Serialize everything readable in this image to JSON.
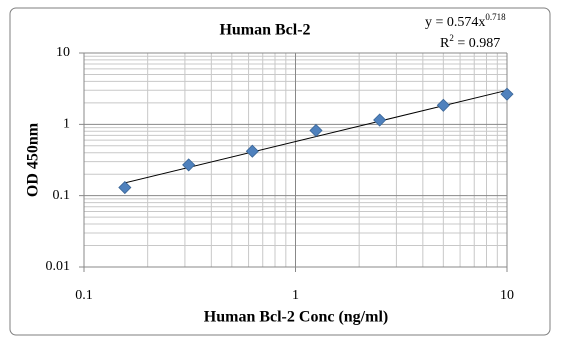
{
  "chart_data": {
    "type": "scatter",
    "title": "Human Bcl-2",
    "x_label": "Human Bcl-2 Conc (ng/ml)",
    "y_label": "OD 450nm",
    "x": [
      0.156,
      0.3125,
      0.625,
      1.25,
      2.5,
      5,
      10
    ],
    "series": [
      {
        "color": "#4f81bd",
        "values": [
          0.13,
          0.27,
          0.42,
          0.82,
          1.15,
          1.85,
          2.65
        ]
      }
    ],
    "xlim": [
      0.1,
      10
    ],
    "ylim": [
      0.01,
      10
    ],
    "xticks": [
      0.1,
      1,
      10
    ],
    "yticks": [
      0.01,
      0.1,
      1,
      10
    ],
    "log_x": true,
    "log_y": true,
    "grid": true,
    "trendline": {
      "type": "power",
      "coefficient": 0.574,
      "exponent": 0.718,
      "color": "#000000",
      "equation_label": "y = 0.574x",
      "r_squared": 0.987,
      "r_squared_label": [
        "R",
        "2",
        " = 0.987"
      ]
    }
  }
}
